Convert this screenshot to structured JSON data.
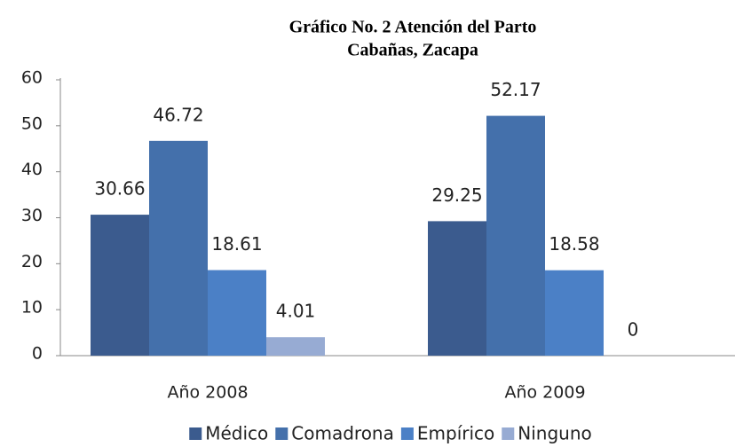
{
  "chart_data": {
    "type": "bar",
    "title": "Gráfico No. 2 Atención del Parto",
    "subtitle": "Cabañas, Zacapa",
    "categories": [
      "Año 2008",
      "Año 2009"
    ],
    "series": [
      {
        "name": "Médico",
        "color": "#3b5b8e",
        "values": [
          30.66,
          29.25
        ]
      },
      {
        "name": "Comadrona",
        "color": "#4470ab",
        "values": [
          46.72,
          52.17
        ]
      },
      {
        "name": "Empírico",
        "color": "#4b80c6",
        "values": [
          18.61,
          18.58
        ]
      },
      {
        "name": "Ninguno",
        "color": "#97abd3",
        "values": [
          4.01,
          0
        ]
      }
    ],
    "ylim": [
      0,
      60
    ],
    "yticks": [
      0,
      10,
      20,
      30,
      40,
      50,
      60
    ],
    "grid": false,
    "legend": "bottom"
  }
}
